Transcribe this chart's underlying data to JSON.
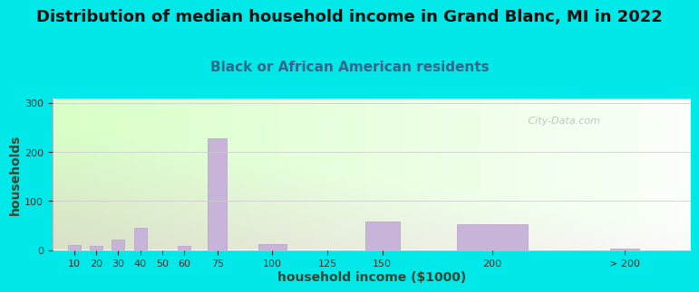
{
  "title": "Distribution of median household income in Grand Blanc, MI in 2022",
  "subtitle": "Black or African American residents",
  "xlabel": "household income ($1000)",
  "ylabel": "households",
  "bar_labels": [
    "10",
    "20",
    "30",
    "40",
    "50",
    "60",
    "75",
    "100",
    "125",
    "150",
    "200",
    "> 200"
  ],
  "bar_values": [
    10,
    8,
    22,
    45,
    0,
    8,
    228,
    12,
    0,
    58,
    52,
    2
  ],
  "bar_color": "#c8b4d8",
  "bar_edge_color": "#b8a0c8",
  "yticks": [
    0,
    100,
    200,
    300
  ],
  "ylim": [
    0,
    310
  ],
  "bg_color": "#00e8e8",
  "plot_bg_left": "#d4e8c0",
  "plot_bg_right": "#f8f8f8",
  "watermark_text": " City-Data.com",
  "title_fontsize": 13,
  "subtitle_fontsize": 11,
  "axis_label_fontsize": 10,
  "tick_fontsize": 8,
  "title_color": "#111111",
  "subtitle_color": "#336688",
  "axis_label_color": "#334433",
  "x_positions": [
    10,
    20,
    30,
    40,
    50,
    60,
    75,
    100,
    125,
    150,
    200,
    260
  ],
  "bar_widths": [
    8,
    8,
    8,
    8,
    8,
    8,
    12,
    18,
    18,
    22,
    45,
    18
  ]
}
